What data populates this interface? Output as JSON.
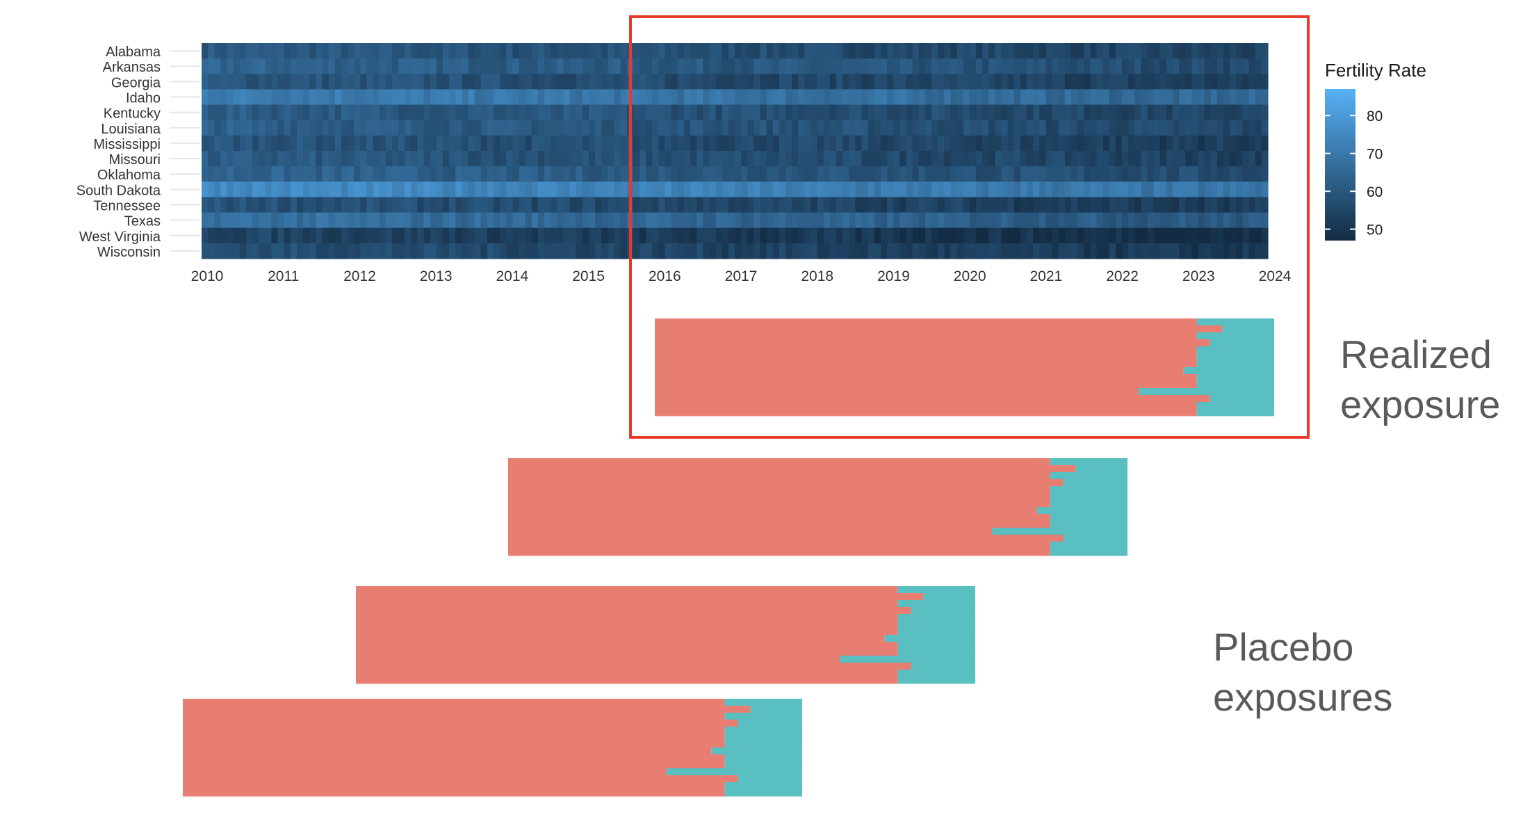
{
  "heatmap": {
    "legend_title": "Fertility Rate",
    "legend_ticks": [
      "80",
      "70",
      "60",
      "50"
    ],
    "color_low": "#132B43",
    "color_high": "#56B1F7",
    "value_range": [
      47,
      87
    ]
  },
  "highlight_color": "#e8392b",
  "exposure_colors": {
    "untreated": "#e87e72",
    "treated": "#59bfc1"
  },
  "side_labels": {
    "realized": "Realized\nexposure",
    "placebo": "Placebo\nexposures"
  },
  "chart_data": [
    {
      "type": "heatmap",
      "title": "",
      "xlabel": "",
      "ylabel": "",
      "states": [
        "Alabama",
        "Arkansas",
        "Georgia",
        "Idaho",
        "Kentucky",
        "Louisiana",
        "Mississippi",
        "Missouri",
        "Oklahoma",
        "South Dakota",
        "Tennessee",
        "Texas",
        "West Virginia",
        "Wisconsin"
      ],
      "x_ticks": [
        "2010",
        "2011",
        "2012",
        "2013",
        "2014",
        "2015",
        "2016",
        "2017",
        "2018",
        "2019",
        "2020",
        "2021",
        "2022",
        "2023",
        "2024"
      ],
      "xlim": [
        2010,
        2024
      ],
      "months": 168,
      "state_mean_rate": [
        61,
        64,
        60,
        72,
        62,
        63,
        60,
        61,
        64,
        76,
        59,
        68,
        55,
        58
      ],
      "annual_decline_per_year": 0.55,
      "colorbar_range": [
        47,
        87
      ],
      "grid": false,
      "legend_position": "right"
    },
    {
      "type": "bar",
      "title": "",
      "xlabel": "",
      "ylabel": "",
      "name": "realized",
      "window": [
        2016,
        2024
      ],
      "onset_year_by_state": [
        2023,
        2023.33,
        2023,
        2023.17,
        2023,
        2023,
        2023,
        2022.83,
        2023,
        2023,
        2022.25,
        2023.17,
        2023,
        2023
      ],
      "legend_position": "none"
    },
    {
      "type": "bar",
      "title": "",
      "xlabel": "",
      "ylabel": "",
      "name": "placebo-1",
      "window": [
        2014,
        2022
      ],
      "onset_year_by_state": [
        2021,
        2021.33,
        2021,
        2021.17,
        2021,
        2021,
        2021,
        2020.83,
        2021,
        2021,
        2020.25,
        2021.17,
        2021,
        2021
      ],
      "legend_position": "none"
    },
    {
      "type": "bar",
      "title": "",
      "xlabel": "",
      "ylabel": "",
      "name": "placebo-2",
      "window": [
        2012,
        2020
      ],
      "onset_year_by_state": [
        2019,
        2019.33,
        2019,
        2019.17,
        2019,
        2019,
        2019,
        2018.83,
        2019,
        2019,
        2018.25,
        2019.17,
        2019,
        2019
      ],
      "legend_position": "none"
    },
    {
      "type": "bar",
      "title": "",
      "xlabel": "",
      "ylabel": "",
      "name": "placebo-3",
      "window": [
        2010,
        2018
      ],
      "onset_year_by_state": [
        2017,
        2017.33,
        2017,
        2017.17,
        2017,
        2017,
        2017,
        2016.83,
        2017,
        2017,
        2016.25,
        2017.17,
        2017,
        2017
      ],
      "legend_position": "none"
    }
  ]
}
